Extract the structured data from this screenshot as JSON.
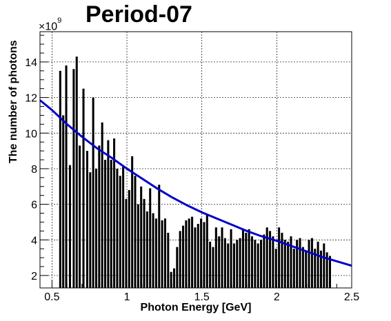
{
  "chart_data": {
    "type": "bar",
    "title": "Period-07",
    "xlabel": "Photon Energy [GeV]",
    "ylabel": "The number of photons",
    "y_multiplier": "×10",
    "y_multiplier_exp": "9",
    "xlim": [
      0.42,
      2.5
    ],
    "ylim": [
      1.3,
      15.7
    ],
    "xticks": [
      {
        "value": 0.5,
        "label": "0.5"
      },
      {
        "value": 1,
        "label": "1"
      },
      {
        "value": 1.5,
        "label": "1.5"
      },
      {
        "value": 2,
        "label": "2"
      },
      {
        "value": 2.5,
        "label": "2.5"
      }
    ],
    "yticks": [
      {
        "value": 2,
        "label": "2"
      },
      {
        "value": 4,
        "label": "4"
      },
      {
        "value": 6,
        "label": "6"
      },
      {
        "value": 8,
        "label": "8"
      },
      {
        "value": 10,
        "label": "10"
      },
      {
        "value": 12,
        "label": "12"
      },
      {
        "value": 14,
        "label": "14"
      }
    ],
    "grid": true,
    "bar_color": "#000000",
    "fit_color": "#0000cc",
    "bar_width": 0.014,
    "bars": [
      [
        0.555,
        13.5
      ],
      [
        0.575,
        11.0
      ],
      [
        0.595,
        13.8
      ],
      [
        0.62,
        8.2
      ],
      [
        0.645,
        13.6
      ],
      [
        0.665,
        14.3
      ],
      [
        0.685,
        9.3
      ],
      [
        0.71,
        12.5
      ],
      [
        0.735,
        9.0
      ],
      [
        0.755,
        7.8
      ],
      [
        0.775,
        12.0
      ],
      [
        0.795,
        8.0
      ],
      [
        0.815,
        9.3
      ],
      [
        0.835,
        10.6
      ],
      [
        0.855,
        8.5
      ],
      [
        0.875,
        9.6
      ],
      [
        0.895,
        8.5
      ],
      [
        0.915,
        9.7
      ],
      [
        0.935,
        8.0
      ],
      [
        0.955,
        7.6
      ],
      [
        0.975,
        8.1
      ],
      [
        0.995,
        6.3
      ],
      [
        1.015,
        6.8
      ],
      [
        1.035,
        8.7
      ],
      [
        1.055,
        7.6
      ],
      [
        1.075,
        6.0
      ],
      [
        1.095,
        7.0
      ],
      [
        1.115,
        6.3
      ],
      [
        1.135,
        5.6
      ],
      [
        1.155,
        6.9
      ],
      [
        1.175,
        5.5
      ],
      [
        1.195,
        5.2
      ],
      [
        1.215,
        7.1
      ],
      [
        1.235,
        5.1
      ],
      [
        1.255,
        5.2
      ],
      [
        1.275,
        4.4
      ],
      [
        1.295,
        2.2
      ],
      [
        1.315,
        2.4
      ],
      [
        1.335,
        3.6
      ],
      [
        1.355,
        4.5
      ],
      [
        1.375,
        4.8
      ],
      [
        1.395,
        5.1
      ],
      [
        1.415,
        5.2
      ],
      [
        1.435,
        5.3
      ],
      [
        1.455,
        4.7
      ],
      [
        1.475,
        4.9
      ],
      [
        1.495,
        5.2
      ],
      [
        1.515,
        5.0
      ],
      [
        1.535,
        5.4
      ],
      [
        1.555,
        3.9
      ],
      [
        1.575,
        3.6
      ],
      [
        1.595,
        4.7
      ],
      [
        1.615,
        4.2
      ],
      [
        1.635,
        4.7
      ],
      [
        1.655,
        4.1
      ],
      [
        1.675,
        3.8
      ],
      [
        1.695,
        4.6
      ],
      [
        1.715,
        3.8
      ],
      [
        1.735,
        4.0
      ],
      [
        1.755,
        4.1
      ],
      [
        1.775,
        4.6
      ],
      [
        1.795,
        4.4
      ],
      [
        1.815,
        4.6
      ],
      [
        1.835,
        4.2
      ],
      [
        1.855,
        4.0
      ],
      [
        1.875,
        3.8
      ],
      [
        1.895,
        4.0
      ],
      [
        1.915,
        4.3
      ],
      [
        1.935,
        4.7
      ],
      [
        1.955,
        4.5
      ],
      [
        1.975,
        4.2
      ],
      [
        1.995,
        3.5
      ],
      [
        2.015,
        4.7
      ],
      [
        2.035,
        4.4
      ],
      [
        2.055,
        4.0
      ],
      [
        2.075,
        3.9
      ],
      [
        2.095,
        4.2
      ],
      [
        2.115,
        3.5
      ],
      [
        2.135,
        4.0
      ],
      [
        2.155,
        4.1
      ],
      [
        2.175,
        3.6
      ],
      [
        2.195,
        3.4
      ],
      [
        2.215,
        4.0
      ],
      [
        2.235,
        4.1
      ],
      [
        2.255,
        3.5
      ],
      [
        2.275,
        3.9
      ],
      [
        2.295,
        3.4
      ],
      [
        2.315,
        3.8
      ],
      [
        2.335,
        3.3
      ],
      [
        2.355,
        3.1
      ]
    ],
    "fit_curve": [
      [
        0.42,
        11.85
      ],
      [
        0.5,
        11.3
      ],
      [
        0.6,
        10.5
      ],
      [
        0.7,
        9.8
      ],
      [
        0.8,
        9.15
      ],
      [
        0.9,
        8.6
      ],
      [
        1.0,
        8.0
      ],
      [
        1.1,
        7.45
      ],
      [
        1.2,
        6.9
      ],
      [
        1.3,
        6.4
      ],
      [
        1.4,
        5.95
      ],
      [
        1.5,
        5.55
      ],
      [
        1.6,
        5.2
      ],
      [
        1.7,
        4.85
      ],
      [
        1.8,
        4.5
      ],
      [
        1.9,
        4.2
      ],
      [
        2.0,
        3.95
      ],
      [
        2.1,
        3.65
      ],
      [
        2.2,
        3.35
      ],
      [
        2.3,
        3.05
      ],
      [
        2.4,
        2.8
      ],
      [
        2.5,
        2.55
      ]
    ]
  }
}
